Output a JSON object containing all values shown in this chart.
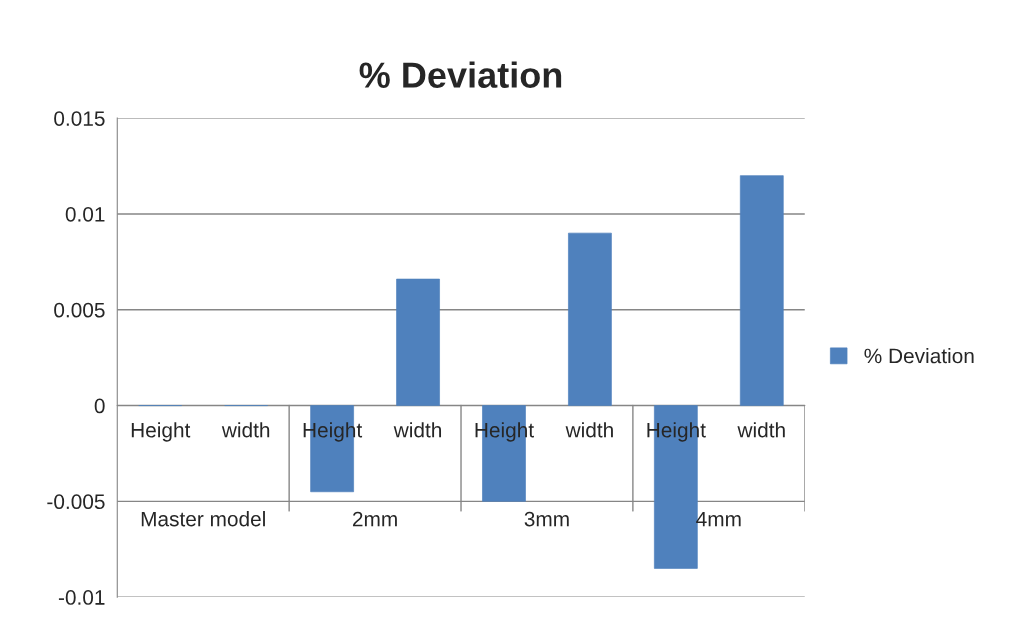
{
  "chart_data": {
    "type": "bar",
    "title": "% Deviation",
    "categories": [
      "Height",
      "width",
      "Height",
      "width",
      "Height",
      "width",
      "Height",
      "width"
    ],
    "series": [
      {
        "name": "% Deviation",
        "color": "#4f81bd",
        "values": [
          0,
          0,
          -0.0045,
          0.0066,
          -0.005,
          0.009,
          -0.0085,
          0.012
        ]
      }
    ],
    "annotations": [
      "Master model",
      "2mm",
      "3mm",
      "4mm"
    ],
    "ylim": [
      -0.01,
      0.015
    ],
    "yticks": [
      -0.01,
      -0.005,
      0,
      0.005,
      0.01,
      0.015
    ],
    "grid": "y",
    "legend": "right"
  }
}
